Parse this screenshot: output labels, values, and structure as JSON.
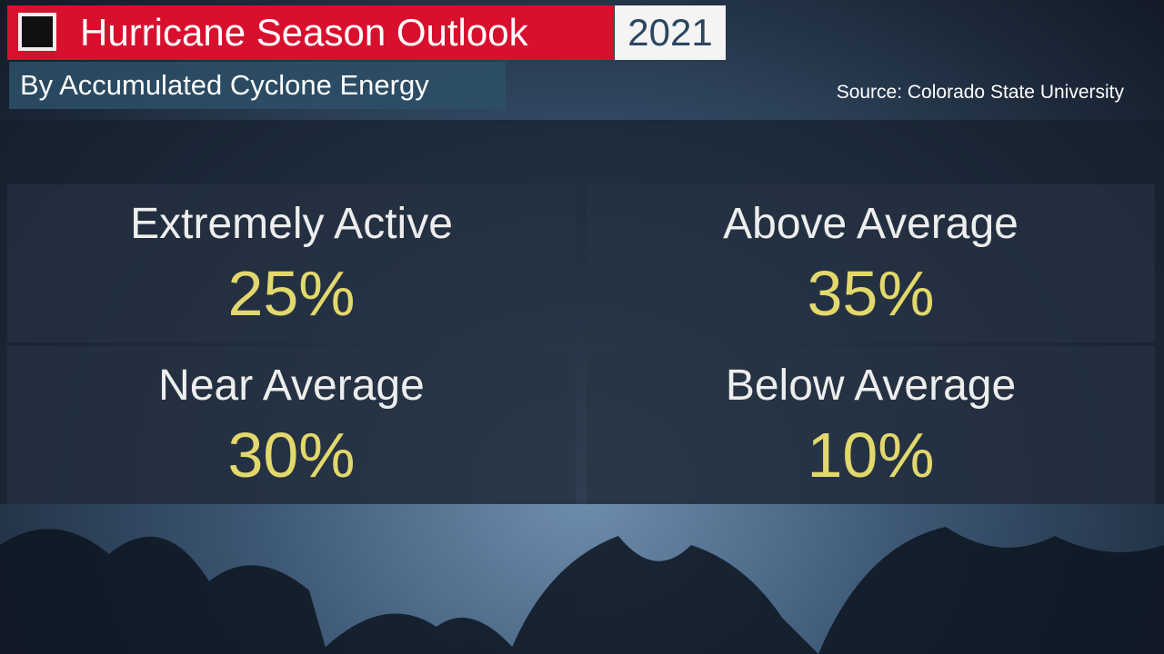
{
  "header": {
    "title": "Hurricane Season Outlook",
    "year": "2021",
    "subtitle": "By Accumulated Cyclone Energy",
    "source": "Source: Colorado State University"
  },
  "cells": [
    {
      "label": "Extremely Active",
      "value": "25%"
    },
    {
      "label": "Above Average",
      "value": "35%"
    },
    {
      "label": "Near Average",
      "value": "30%"
    },
    {
      "label": "Below Average",
      "value": "10%"
    }
  ]
}
